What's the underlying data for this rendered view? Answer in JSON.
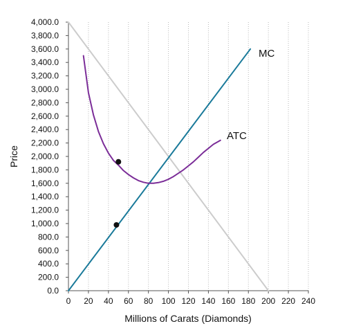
{
  "chart_data": {
    "type": "line",
    "title": "",
    "xlabel": "Millions of Carats (Diamonds)",
    "ylabel": "Price",
    "xlim": [
      0,
      240
    ],
    "ylim": [
      0,
      4000
    ],
    "x_ticks": [
      0,
      20,
      40,
      60,
      80,
      100,
      120,
      140,
      160,
      180,
      200,
      220,
      240
    ],
    "y_ticks": [
      0,
      200,
      400,
      600,
      800,
      1000,
      1200,
      1400,
      1600,
      1800,
      2000,
      2200,
      2400,
      2600,
      2800,
      3000,
      3200,
      3400,
      3600,
      3800,
      4000
    ],
    "x_tick_labels": [
      "0",
      "20",
      "40",
      "60",
      "80",
      "100",
      "120",
      "140",
      "160",
      "180",
      "200",
      "220",
      "240"
    ],
    "y_tick_labels": [
      "0.0",
      "200.0",
      "400.0",
      "600.0",
      "800.0",
      "1,000.0",
      "1,200.0",
      "1,400.0",
      "1,600.0",
      "1,800.0",
      "2,000.0",
      "2,200.0",
      "2,400.0",
      "2,600.0",
      "2,800.0",
      "3,000.0",
      "3,200.0",
      "3,400.0",
      "3,600.0",
      "3,800.0",
      "4,000.0"
    ],
    "grid": {
      "vertical": true,
      "horizontal": false
    },
    "series": [
      {
        "kind": "demand",
        "color": "#cccccc",
        "x": [
          0,
          200
        ],
        "y": [
          4000,
          0
        ]
      },
      {
        "name": "MC",
        "color": "#1a7a9a",
        "x": [
          0,
          182
        ],
        "y": [
          0,
          3600
        ]
      },
      {
        "name": "ATC",
        "color": "#7b2d98",
        "x": [
          15,
          20,
          25,
          30,
          35,
          40,
          45,
          50,
          55,
          60,
          65,
          70,
          75,
          80,
          85,
          90,
          95,
          100,
          105,
          110,
          115,
          120,
          125,
          130,
          135,
          140,
          145,
          152
        ],
        "y": [
          3500,
          2950,
          2620,
          2370,
          2190,
          2050,
          1940,
          1870,
          1790,
          1730,
          1680,
          1640,
          1615,
          1600,
          1600,
          1610,
          1630,
          1660,
          1700,
          1750,
          1800,
          1860,
          1920,
          1990,
          2060,
          2120,
          2180,
          2240
        ]
      }
    ],
    "points": [
      {
        "x": 50,
        "y": 1920,
        "color": "#111111"
      },
      {
        "x": 48,
        "y": 980,
        "color": "#111111"
      }
    ]
  }
}
